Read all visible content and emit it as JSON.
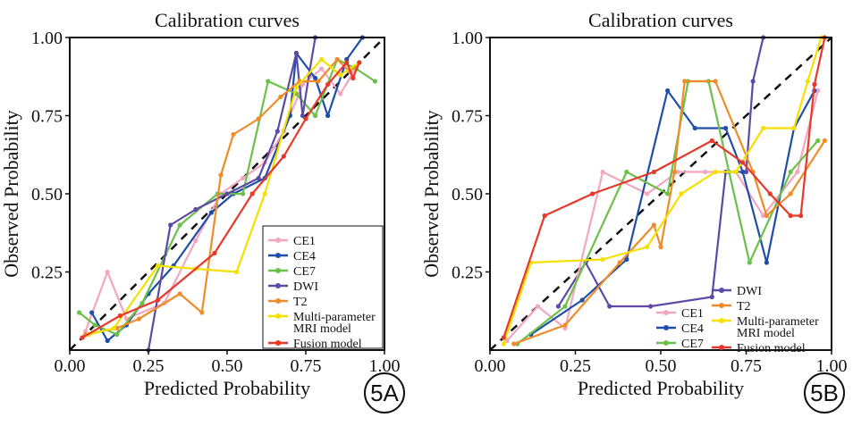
{
  "chart_data": [
    {
      "type": "line",
      "title": "Calibration curves",
      "xlabel": "Predicted Probability",
      "ylabel": "Observed Probability",
      "xlim": [
        0,
        1
      ],
      "ylim": [
        0,
        1
      ],
      "xticks": [
        "0.00",
        "0.25",
        "0.50",
        "0.75",
        "1.00"
      ],
      "yticks": [
        "0.25",
        "0.50",
        "0.75",
        "1.00"
      ],
      "panel_label": "5A",
      "legend_position": "bottom-right",
      "reference_line": "dashed diagonal",
      "series": [
        {
          "name": "CE1",
          "color": "#f4a6c0",
          "x": [
            0.05,
            0.12,
            0.18,
            0.3,
            0.4,
            0.48,
            0.55,
            0.62,
            0.68,
            0.74,
            0.8,
            0.86,
            0.92
          ],
          "y": [
            0.06,
            0.25,
            0.1,
            0.15,
            0.35,
            0.5,
            0.55,
            0.6,
            0.7,
            0.85,
            0.9,
            0.82,
            0.92
          ]
        },
        {
          "name": "CE4",
          "color": "#1f4ea8",
          "x": [
            0.07,
            0.12,
            0.18,
            0.25,
            0.33,
            0.45,
            0.52,
            0.62,
            0.7,
            0.72,
            0.78,
            0.82,
            0.88,
            0.93
          ],
          "y": [
            0.12,
            0.03,
            0.08,
            0.18,
            0.27,
            0.44,
            0.5,
            0.55,
            0.75,
            0.95,
            0.87,
            0.75,
            0.93,
            1.0
          ]
        },
        {
          "name": "CE7",
          "color": "#6cc04a",
          "x": [
            0.03,
            0.08,
            0.15,
            0.23,
            0.35,
            0.47,
            0.55,
            0.63,
            0.72,
            0.78,
            0.85,
            0.91,
            0.97
          ],
          "y": [
            0.12,
            0.08,
            0.05,
            0.15,
            0.4,
            0.5,
            0.5,
            0.86,
            0.82,
            0.75,
            0.93,
            0.9,
            0.86
          ]
        },
        {
          "name": "DWI",
          "color": "#5c4aa6",
          "x": [
            0.25,
            0.32,
            0.4,
            0.5,
            0.6,
            0.66,
            0.72,
            0.74,
            0.76,
            0.78
          ],
          "y": [
            0.0,
            0.4,
            0.45,
            0.5,
            0.55,
            0.7,
            0.95,
            0.75,
            0.88,
            1.0
          ]
        },
        {
          "name": "T2",
          "color": "#f08c28",
          "x": [
            0.05,
            0.15,
            0.22,
            0.35,
            0.42,
            0.48,
            0.52,
            0.6,
            0.67,
            0.73,
            0.79,
            0.85,
            0.89,
            0.92
          ],
          "y": [
            0.05,
            0.07,
            0.1,
            0.18,
            0.12,
            0.56,
            0.69,
            0.74,
            0.81,
            0.86,
            0.86,
            0.93,
            0.89,
            0.92
          ]
        },
        {
          "name": "Multi-parameter\nMRI model",
          "color": "#f5e000",
          "x": [
            0.06,
            0.14,
            0.28,
            0.4,
            0.53,
            0.62,
            0.72,
            0.8,
            0.86,
            0.92
          ],
          "y": [
            0.05,
            0.07,
            0.27,
            0.26,
            0.25,
            0.5,
            0.84,
            0.93,
            0.88,
            0.92
          ]
        },
        {
          "name": "Fusion model",
          "color": "#e8382a",
          "x": [
            0.04,
            0.16,
            0.28,
            0.46,
            0.58,
            0.68,
            0.75,
            0.82,
            0.88,
            0.9,
            0.92
          ],
          "y": [
            0.04,
            0.11,
            0.16,
            0.31,
            0.5,
            0.62,
            0.74,
            0.85,
            0.92,
            0.87,
            0.92
          ]
        }
      ]
    },
    {
      "type": "line",
      "title": "Calibration curves",
      "xlabel": "Predicted Probability",
      "ylabel": "Observed Probability",
      "xlim": [
        0,
        1
      ],
      "ylim": [
        0,
        1
      ],
      "xticks": [
        "0.00",
        "0.25",
        "0.50",
        "0.75",
        "1.00"
      ],
      "yticks": [
        "0.25",
        "0.50",
        "0.75",
        "1.00"
      ],
      "panel_label": "5B",
      "legend_position": "bottom-center",
      "reference_line": "dashed diagonal",
      "series": [
        {
          "name": "DWI",
          "color": "#5c4aa6",
          "x": [
            0.2,
            0.28,
            0.35,
            0.47,
            0.65,
            0.69,
            0.75,
            0.77,
            0.8
          ],
          "y": [
            0.14,
            0.28,
            0.14,
            0.14,
            0.17,
            0.57,
            0.57,
            0.86,
            1.0
          ]
        },
        {
          "name": "CE1",
          "color": "#f4a6c0",
          "x": [
            0.05,
            0.14,
            0.22,
            0.33,
            0.46,
            0.55,
            0.63,
            0.72,
            0.8,
            0.9,
            0.96
          ],
          "y": [
            0.03,
            0.14,
            0.07,
            0.57,
            0.5,
            0.57,
            0.57,
            0.57,
            0.43,
            0.57,
            0.83
          ]
        },
        {
          "name": "CE4",
          "color": "#1f4ea8",
          "x": [
            0.12,
            0.27,
            0.4,
            0.52,
            0.6,
            0.69,
            0.74,
            0.81,
            0.89,
            0.95
          ],
          "y": [
            0.05,
            0.16,
            0.29,
            0.83,
            0.71,
            0.71,
            0.57,
            0.28,
            0.71,
            0.83
          ]
        },
        {
          "name": "CE7",
          "color": "#6cc04a",
          "x": [
            0.08,
            0.22,
            0.4,
            0.52,
            0.58,
            0.64,
            0.7,
            0.76,
            0.88,
            0.96
          ],
          "y": [
            0.02,
            0.14,
            0.57,
            0.5,
            0.86,
            0.86,
            0.57,
            0.28,
            0.57,
            0.67
          ]
        },
        {
          "name": "T2",
          "color": "#f08c28",
          "x": [
            0.07,
            0.22,
            0.38,
            0.48,
            0.5,
            0.54,
            0.57,
            0.66,
            0.77,
            0.81,
            0.88,
            0.98
          ],
          "y": [
            0.02,
            0.08,
            0.28,
            0.4,
            0.33,
            0.57,
            0.86,
            0.86,
            0.57,
            0.43,
            0.5,
            0.67
          ]
        },
        {
          "name": "Multi-parameter\nMRI model",
          "color": "#f5e000",
          "x": [
            0.04,
            0.12,
            0.33,
            0.46,
            0.56,
            0.66,
            0.72,
            0.8,
            0.89,
            0.93,
            0.97
          ],
          "y": [
            0.02,
            0.28,
            0.29,
            0.33,
            0.5,
            0.57,
            0.57,
            0.71,
            0.71,
            0.86,
            1.0
          ]
        },
        {
          "name": "Fusion model",
          "color": "#e8382a",
          "x": [
            0.04,
            0.16,
            0.3,
            0.48,
            0.65,
            0.74,
            0.82,
            0.88,
            0.91,
            0.95,
            0.98
          ],
          "y": [
            0.04,
            0.43,
            0.5,
            0.57,
            0.67,
            0.6,
            0.5,
            0.43,
            0.43,
            0.85,
            1.0
          ]
        }
      ]
    }
  ]
}
